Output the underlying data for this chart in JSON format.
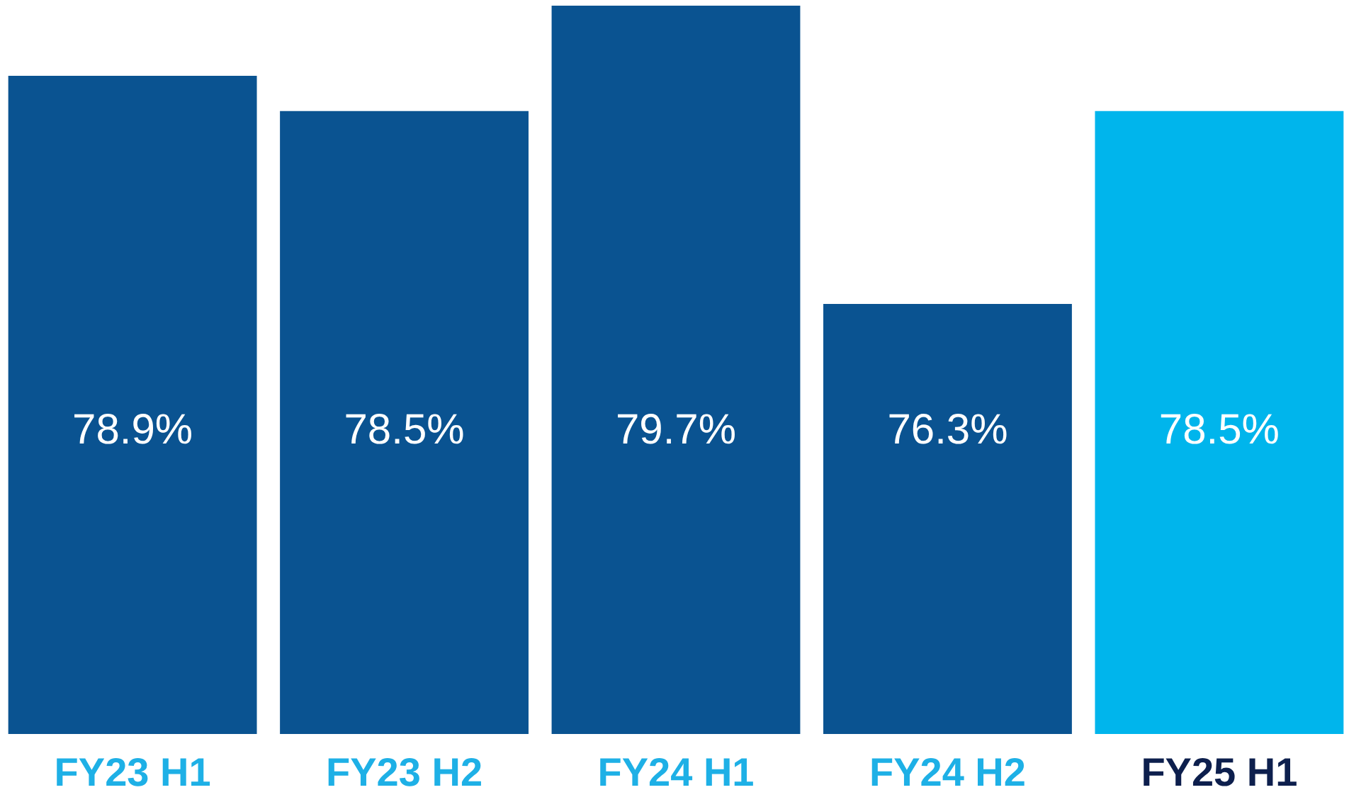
{
  "chart_data": {
    "type": "bar",
    "categories": [
      "FY23 H1",
      "FY23 H2",
      "FY24 H1",
      "FY24 H2",
      "FY25 H1"
    ],
    "values": [
      78.9,
      78.5,
      79.7,
      76.3,
      78.5
    ],
    "value_labels": [
      "78.9%",
      "78.5%",
      "79.7%",
      "76.3%",
      "78.5%"
    ],
    "colors": [
      "#0a5391",
      "#0a5391",
      "#0a5391",
      "#0a5391",
      "#00b5ec"
    ],
    "ylim": [
      71.4,
      79.7
    ],
    "grid": false
  }
}
